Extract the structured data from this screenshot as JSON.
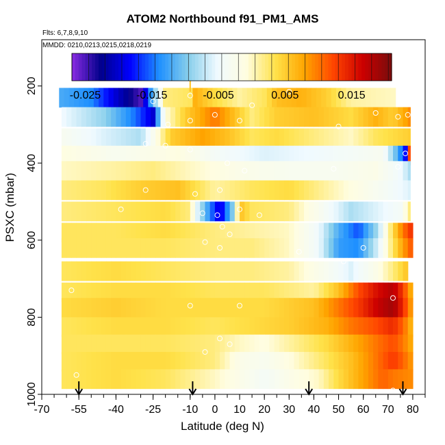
{
  "chart_data": {
    "type": "heatmap",
    "title": "ATOM2 Northbound f91_PM1_AMS",
    "flights_note": "Flts: 6,7,8,9,10",
    "dates_note": "MMDD: 0210,0213,0215,0218,0219",
    "xlabel": "Latitude (deg N)",
    "ylabel": "PSXC (mbar)",
    "xlim": [
      -70,
      85
    ],
    "ylim": [
      1000,
      80
    ],
    "x_ticks": [
      -70,
      -55,
      -40,
      -25,
      -10,
      0,
      10,
      20,
      30,
      40,
      50,
      60,
      70,
      80
    ],
    "x_tick_labels": [
      "-70",
      "-55",
      "-40",
      "-25",
      "-10",
      "0",
      "10",
      "20",
      "30",
      "40",
      "50",
      "60",
      "70",
      "80"
    ],
    "y_ticks": [
      200,
      400,
      600,
      800,
      1000
    ],
    "y_tick_labels": [
      "200",
      "400",
      "600",
      "800",
      "1000"
    ],
    "colorbar": {
      "vmin": -0.027,
      "vmax": 0.021,
      "ticks": [
        -0.025,
        -0.015,
        -0.005,
        0.005,
        0.015
      ],
      "tick_labels": [
        "-0.025",
        "-0.015",
        "-0.005",
        "0.005",
        "0.015"
      ],
      "colors": [
        "#8a2be2",
        "#00008b",
        "#0000ff",
        "#1e90ff",
        "#87ceeb",
        "#f0faff",
        "#fffde0",
        "#ffe24a",
        "#ffa500",
        "#ff4500",
        "#cc0000",
        "#7a0c0c"
      ]
    },
    "pressure_bins": [
      230,
      280,
      335,
      380,
      420,
      470,
      525,
      580,
      620,
      680,
      735,
      775,
      825,
      870,
      915,
      960
    ],
    "bin_half_height": 25,
    "lat_start": -58,
    "lat_end": 80,
    "lat_step": 2,
    "rows": [
      {
        "p": 230,
        "lat_min": -63,
        "lat_max": 73,
        "nodes": [
          [
            -63,
            -0.012
          ],
          [
            -50,
            -0.014
          ],
          [
            -40,
            -0.02
          ],
          [
            -30,
            -0.025
          ],
          [
            -27,
            -0.016
          ],
          [
            -20,
            0.002
          ],
          [
            -10,
            0.003
          ],
          [
            -8,
            0.007
          ],
          [
            0,
            0.004
          ],
          [
            10,
            0.001
          ],
          [
            20,
            0.003
          ],
          [
            25,
            0.006
          ],
          [
            35,
            0.007
          ],
          [
            45,
            0.005
          ],
          [
            55,
            0.001
          ],
          [
            73,
            0.0
          ]
        ]
      },
      {
        "p": 280,
        "lat_min": -62,
        "lat_max": 79,
        "nodes": [
          [
            -62,
            -0.005
          ],
          [
            -45,
            -0.009
          ],
          [
            -32,
            -0.015
          ],
          [
            -25,
            -0.02
          ],
          [
            -20,
            -0.001
          ],
          [
            -12,
            0.005
          ],
          [
            0,
            0.01
          ],
          [
            8,
            0.006
          ],
          [
            15,
            0.002
          ],
          [
            25,
            0.005
          ],
          [
            40,
            0.006
          ],
          [
            55,
            0.004
          ],
          [
            65,
            0.007
          ],
          [
            72,
            0.005
          ],
          [
            79,
            0.009
          ]
        ]
      },
      {
        "p": 335,
        "lat_min": -62,
        "lat_max": 79,
        "nodes": [
          [
            -62,
            -0.003
          ],
          [
            -45,
            -0.006
          ],
          [
            -30,
            -0.008
          ],
          [
            -25,
            -0.003
          ],
          [
            -18,
            0.005
          ],
          [
            -5,
            0.008
          ],
          [
            5,
            0.006
          ],
          [
            15,
            0.003
          ],
          [
            25,
            0.004
          ],
          [
            40,
            0.002
          ],
          [
            55,
            0.0
          ],
          [
            65,
            0.003
          ],
          [
            79,
            0.005
          ]
        ]
      },
      {
        "p": 380,
        "lat_min": -62,
        "lat_max": 79,
        "nodes": [
          [
            -62,
            -0.001
          ],
          [
            -40,
            -0.003
          ],
          [
            -25,
            -0.002
          ],
          [
            -15,
            -0.001
          ],
          [
            0,
            -0.004
          ],
          [
            20,
            -0.006
          ],
          [
            40,
            -0.005
          ],
          [
            55,
            -0.004
          ],
          [
            68,
            -0.003
          ],
          [
            74,
            -0.012
          ],
          [
            78,
            -0.02
          ],
          [
            79,
            0.012
          ]
        ]
      },
      {
        "p": 420,
        "lat_min": -62,
        "lat_max": 79,
        "nodes": [
          [
            -62,
            0.0
          ],
          [
            -40,
            0.001
          ],
          [
            -25,
            0.002
          ],
          [
            -10,
            0.0
          ],
          [
            10,
            -0.002
          ],
          [
            30,
            -0.003
          ],
          [
            50,
            -0.003
          ],
          [
            65,
            -0.002
          ],
          [
            75,
            -0.005
          ],
          [
            79,
            -0.008
          ]
        ]
      },
      {
        "p": 470,
        "lat_min": -62,
        "lat_max": 79,
        "nodes": [
          [
            -62,
            0.002
          ],
          [
            -45,
            0.003
          ],
          [
            -30,
            0.005
          ],
          [
            -15,
            0.006
          ],
          [
            0,
            0.001
          ],
          [
            15,
            0.003
          ],
          [
            30,
            0.004
          ],
          [
            45,
            0.001
          ],
          [
            60,
            -0.002
          ],
          [
            70,
            -0.004
          ],
          [
            79,
            -0.006
          ]
        ]
      },
      {
        "p": 525,
        "lat_min": -62,
        "lat_max": 79,
        "nodes": [
          [
            -62,
            0.002
          ],
          [
            -40,
            0.003
          ],
          [
            -20,
            0.004
          ],
          [
            -10,
            0.002
          ],
          [
            -7,
            -0.006
          ],
          [
            -2,
            -0.014
          ],
          [
            2,
            -0.02
          ],
          [
            7,
            -0.01
          ],
          [
            10,
            0.006
          ],
          [
            15,
            0.003
          ],
          [
            30,
            0.002
          ],
          [
            45,
            -0.004
          ],
          [
            55,
            -0.008
          ],
          [
            65,
            -0.006
          ],
          [
            75,
            -0.004
          ],
          [
            79,
            0.002
          ]
        ]
      },
      {
        "p": 580,
        "lat_min": -62,
        "lat_max": 80,
        "nodes": [
          [
            -62,
            0.003
          ],
          [
            -40,
            0.003
          ],
          [
            -20,
            0.004
          ],
          [
            0,
            0.002
          ],
          [
            15,
            0.001
          ],
          [
            30,
            0.0
          ],
          [
            42,
            -0.005
          ],
          [
            50,
            -0.012
          ],
          [
            58,
            -0.016
          ],
          [
            66,
            -0.008
          ],
          [
            72,
            0.004
          ],
          [
            76,
            0.01
          ],
          [
            80,
            0.014
          ]
        ]
      },
      {
        "p": 620,
        "lat_min": -62,
        "lat_max": 80,
        "nodes": [
          [
            -62,
            0.003
          ],
          [
            -40,
            0.003
          ],
          [
            -20,
            0.003
          ],
          [
            0,
            0.002
          ],
          [
            15,
            0.002
          ],
          [
            30,
            0.0
          ],
          [
            42,
            -0.005
          ],
          [
            50,
            -0.013
          ],
          [
            58,
            -0.014
          ],
          [
            66,
            -0.006
          ],
          [
            72,
            0.003
          ],
          [
            76,
            0.008
          ],
          [
            80,
            0.012
          ]
        ]
      },
      {
        "p": 680,
        "lat_min": -62,
        "lat_max": 78,
        "nodes": [
          [
            -62,
            0.003
          ],
          [
            -40,
            0.004
          ],
          [
            -20,
            0.003
          ],
          [
            0,
            0.002
          ],
          [
            15,
            0.002
          ],
          [
            30,
            0.001
          ],
          [
            45,
            -0.003
          ],
          [
            55,
            -0.006
          ],
          [
            65,
            -0.002
          ],
          [
            72,
            0.002
          ],
          [
            78,
            0.006
          ]
        ]
      },
      {
        "p": 735,
        "lat_min": -62,
        "lat_max": 80,
        "nodes": [
          [
            -62,
            0.003
          ],
          [
            -40,
            0.004
          ],
          [
            -20,
            0.004
          ],
          [
            0,
            0.003
          ],
          [
            20,
            0.003
          ],
          [
            40,
            0.001
          ],
          [
            50,
            0.006
          ],
          [
            58,
            0.012
          ],
          [
            66,
            0.016
          ],
          [
            72,
            0.018
          ],
          [
            76,
            0.013
          ],
          [
            80,
            0.006
          ]
        ]
      },
      {
        "p": 775,
        "lat_min": -62,
        "lat_max": 80,
        "nodes": [
          [
            -62,
            0.004
          ],
          [
            -40,
            0.005
          ],
          [
            -20,
            0.004
          ],
          [
            0,
            0.004
          ],
          [
            20,
            0.004
          ],
          [
            40,
            0.006
          ],
          [
            50,
            0.01
          ],
          [
            58,
            0.013
          ],
          [
            66,
            0.017
          ],
          [
            72,
            0.019
          ],
          [
            76,
            0.014
          ],
          [
            80,
            0.007
          ]
        ]
      },
      {
        "p": 825,
        "lat_min": -62,
        "lat_max": 80,
        "nodes": [
          [
            -62,
            0.003
          ],
          [
            -40,
            0.004
          ],
          [
            -20,
            0.004
          ],
          [
            0,
            0.003
          ],
          [
            15,
            0.004
          ],
          [
            30,
            0.005
          ],
          [
            45,
            0.007
          ],
          [
            55,
            0.01
          ],
          [
            65,
            0.012
          ],
          [
            72,
            0.014
          ],
          [
            76,
            0.011
          ],
          [
            80,
            0.006
          ]
        ]
      },
      {
        "p": 870,
        "lat_min": -62,
        "lat_max": 80,
        "nodes": [
          [
            -62,
            0.003
          ],
          [
            -40,
            0.003
          ],
          [
            -20,
            0.003
          ],
          [
            0,
            0.002
          ],
          [
            10,
            0.0
          ],
          [
            20,
            -0.001
          ],
          [
            30,
            0.001
          ],
          [
            45,
            0.004
          ],
          [
            55,
            0.007
          ],
          [
            65,
            0.01
          ],
          [
            72,
            0.012
          ],
          [
            76,
            0.01
          ],
          [
            80,
            0.007
          ]
        ]
      },
      {
        "p": 915,
        "lat_min": -62,
        "lat_max": 80,
        "nodes": [
          [
            -62,
            0.003
          ],
          [
            -40,
            0.004
          ],
          [
            -20,
            0.004
          ],
          [
            0,
            0.002
          ],
          [
            10,
            -0.002
          ],
          [
            20,
            -0.003
          ],
          [
            30,
            -0.001
          ],
          [
            45,
            0.003
          ],
          [
            55,
            0.006
          ],
          [
            65,
            0.01
          ],
          [
            72,
            0.013
          ],
          [
            76,
            0.011
          ],
          [
            80,
            0.008
          ]
        ]
      },
      {
        "p": 960,
        "lat_min": -62,
        "lat_max": 80,
        "nodes": [
          [
            -62,
            0.003
          ],
          [
            -40,
            0.004
          ],
          [
            -20,
            0.003
          ],
          [
            0,
            0.0
          ],
          [
            10,
            -0.002
          ],
          [
            20,
            -0.004
          ],
          [
            30,
            -0.002
          ],
          [
            42,
            0.0
          ],
          [
            50,
            0.004
          ],
          [
            60,
            0.008
          ],
          [
            68,
            0.011
          ],
          [
            72,
            0.01
          ],
          [
            80,
            0.009
          ]
        ]
      }
    ],
    "top_spike": {
      "lat": -10,
      "p_top": 160,
      "p_bottom": 215,
      "value": 0.006
    },
    "sample_points": [
      [
        -25,
        240
      ],
      [
        -10,
        225
      ],
      [
        15,
        250
      ],
      [
        30,
        215
      ],
      [
        0,
        275
      ],
      [
        65,
        270
      ],
      [
        74,
        280
      ],
      [
        78,
        275
      ],
      [
        -19,
        300
      ],
      [
        -10,
        290
      ],
      [
        10,
        290
      ],
      [
        50,
        305
      ],
      [
        -28,
        350
      ],
      [
        -20,
        355
      ],
      [
        -10,
        365
      ],
      [
        5,
        400
      ],
      [
        12,
        420
      ],
      [
        48,
        415
      ],
      [
        74,
        410
      ],
      [
        77,
        375
      ],
      [
        -38,
        520
      ],
      [
        -28,
        470
      ],
      [
        -8,
        480
      ],
      [
        2,
        470
      ],
      [
        10,
        520
      ],
      [
        18,
        535
      ],
      [
        -5,
        530
      ],
      [
        1,
        535
      ],
      [
        3,
        565
      ],
      [
        -4,
        605
      ],
      [
        2,
        620
      ],
      [
        6,
        585
      ],
      [
        34,
        630
      ],
      [
        52,
        655
      ],
      [
        60,
        620
      ],
      [
        -58,
        730
      ],
      [
        -10,
        770
      ],
      [
        10,
        770
      ],
      [
        72,
        750
      ],
      [
        -4,
        890
      ],
      [
        2,
        855
      ],
      [
        6,
        870
      ],
      [
        12,
        1000
      ],
      [
        72,
        990
      ],
      [
        -56,
        950
      ]
    ],
    "arrows": [
      -55,
      -9,
      38,
      76
    ]
  }
}
